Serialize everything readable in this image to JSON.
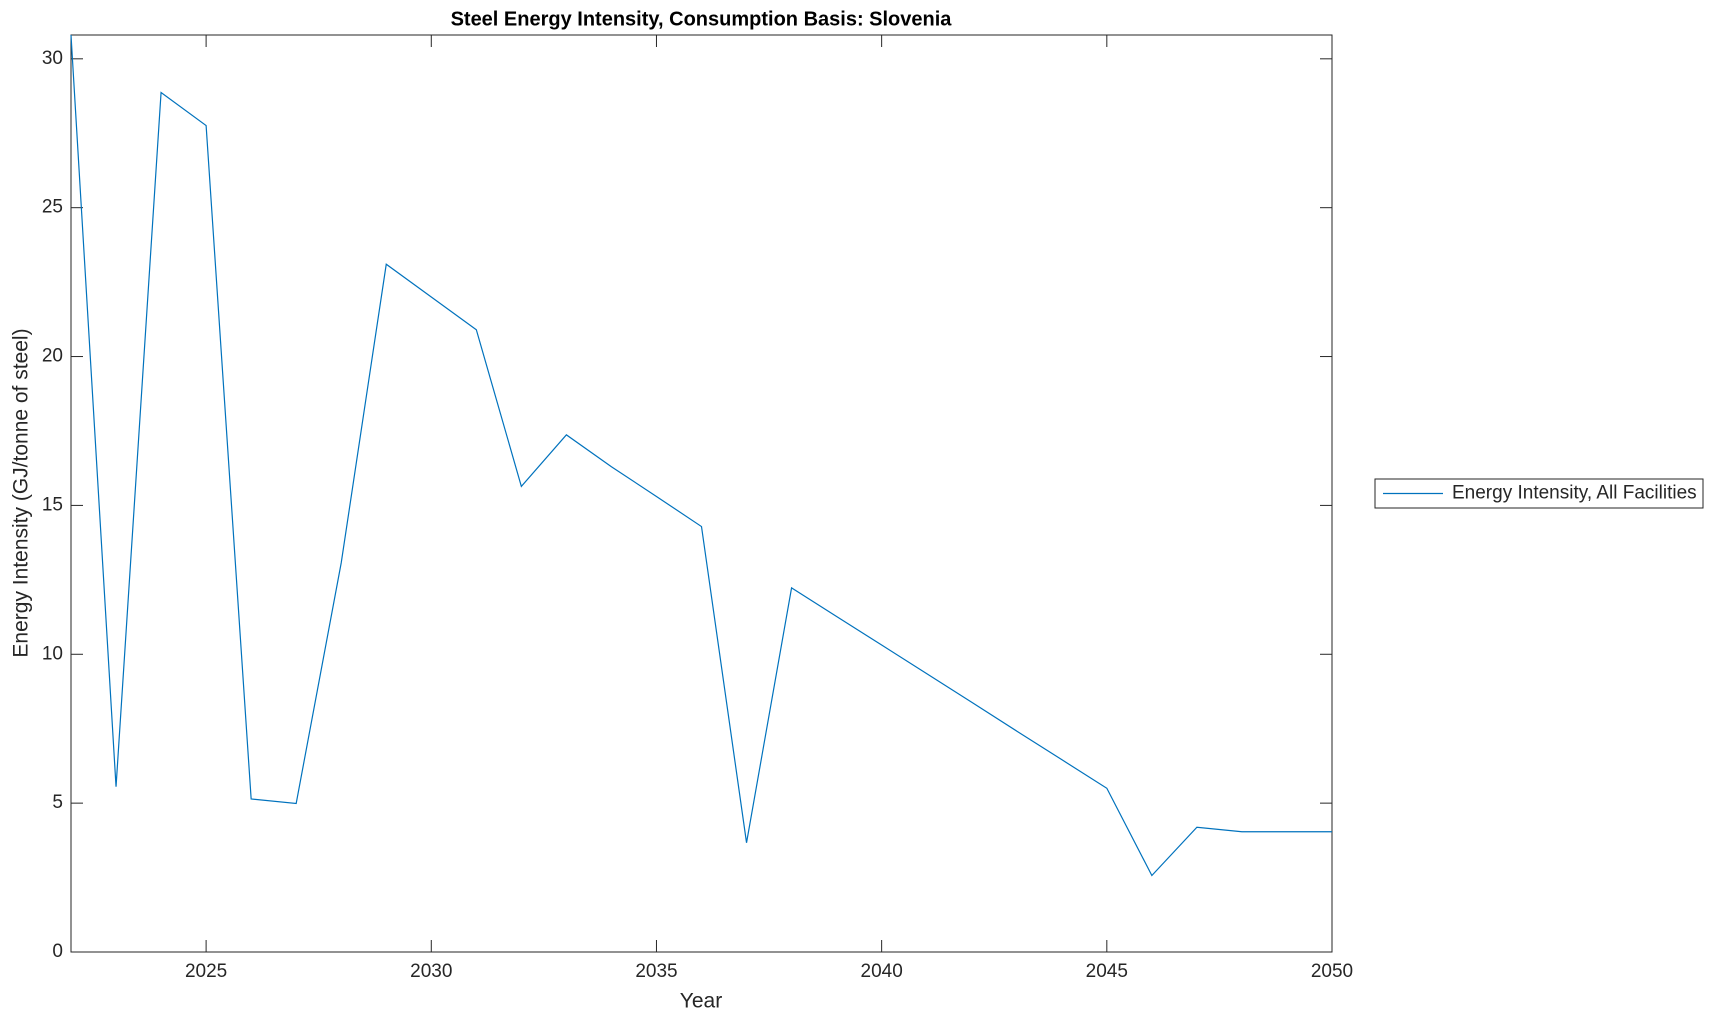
{
  "chart_data": {
    "type": "line",
    "title": "Steel Energy Intensity, Consumption Basis: Slovenia",
    "xlabel": "Year",
    "ylabel": "Energy Intensity (GJ/tonne of steel)",
    "x": [
      2022,
      2023,
      2024,
      2025,
      2026,
      2027,
      2028,
      2029,
      2030,
      2031,
      2032,
      2033,
      2034,
      2035,
      2036,
      2037,
      2038,
      2039,
      2040,
      2041,
      2042,
      2043,
      2044,
      2045,
      2046,
      2047,
      2048,
      2049,
      2050
    ],
    "series": [
      {
        "name": "Energy Intensity, All Facilities",
        "color": "#0072bd",
        "values": [
          30.8,
          5.55,
          28.87,
          27.76,
          5.14,
          4.99,
          13.07,
          23.1,
          22.0,
          20.9,
          15.64,
          17.37,
          16.3,
          15.3,
          14.29,
          3.67,
          12.23,
          11.27,
          10.31,
          9.35,
          8.39,
          7.42,
          6.46,
          5.5,
          2.57,
          4.19,
          4.04,
          4.04,
          4.04
        ]
      }
    ],
    "xlim": [
      2022,
      2050
    ],
    "xticks": [
      2025,
      2030,
      2035,
      2040,
      2045,
      2050
    ],
    "ylim": [
      0,
      30.8
    ],
    "yticks": [
      0,
      5,
      10,
      15,
      20,
      25,
      30
    ],
    "legend": "right"
  }
}
